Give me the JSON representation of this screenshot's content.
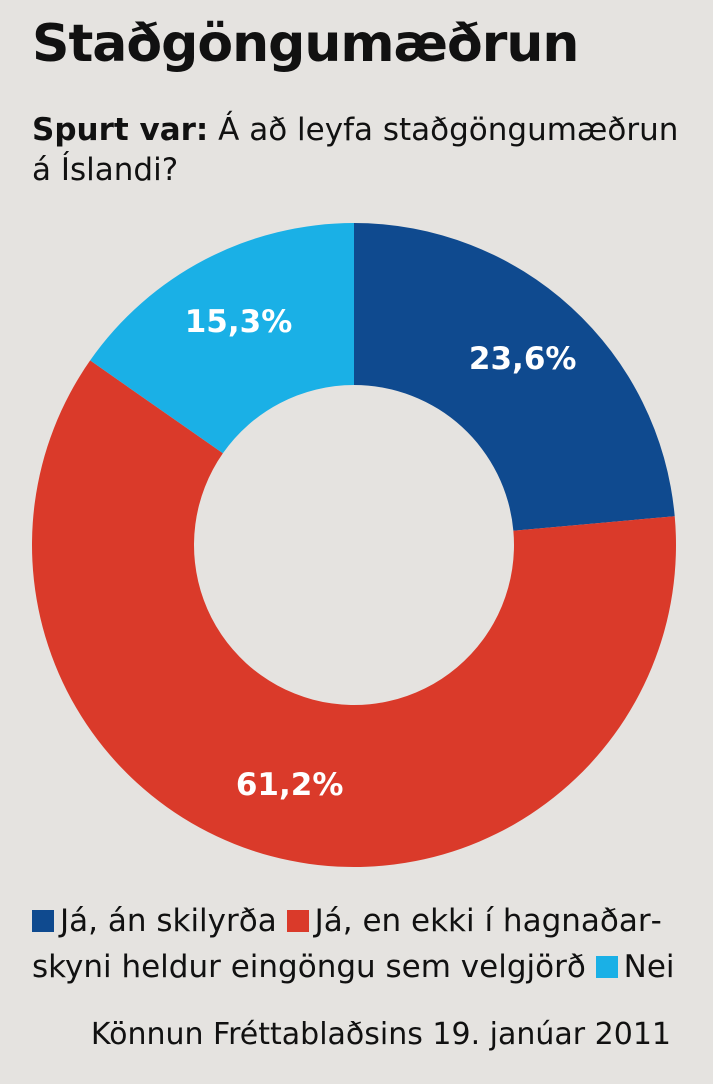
{
  "header": {
    "title": "Staðgöngumæðrun",
    "question_lead": "Spurt var:",
    "question_text": "Á að leyfa staðgöngumæðrun á Íslandi?"
  },
  "footer": {
    "source": "Könnun Fréttablaðsins 19. janúar 2011"
  },
  "chart_data": {
    "type": "pie",
    "variant": "donut",
    "title": "Staðgöngumæðrun",
    "subtitle": "Spurt var: Á að leyfa staðgöngumæðrun á Íslandi?",
    "unit": "%",
    "legend_position": "bottom",
    "slices": [
      {
        "name": "Já, án skilyrða",
        "value": 23.6,
        "label": "23,6%",
        "color": "#0f4a8f"
      },
      {
        "name": "Já, en ekki í hagnaðar­skyni heldur eingöngu sem velgjörð",
        "value": 61.2,
        "label": "61,2%",
        "color": "#da3a2a"
      },
      {
        "name": "Nei",
        "value": 15.3,
        "label": "15,3%",
        "color": "#1ab0e6"
      }
    ]
  }
}
